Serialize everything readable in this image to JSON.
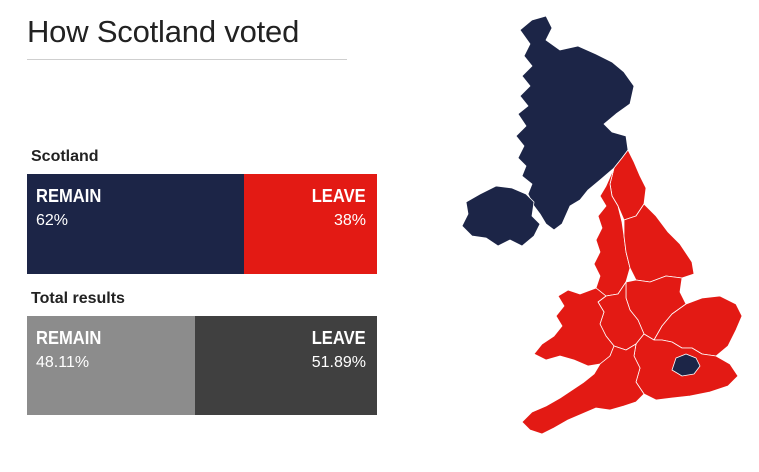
{
  "title": "How Scotland voted",
  "scotland": {
    "label": "Scotland",
    "remain": {
      "label": "REMAIN",
      "value": "62%",
      "share": 62
    },
    "leave": {
      "label": "LEAVE",
      "value": "38%",
      "share": 38
    }
  },
  "total": {
    "label": "Total results",
    "remain": {
      "label": "REMAIN",
      "value": "48.11%",
      "share": 48.11
    },
    "leave": {
      "label": "LEAVE",
      "value": "51.89%",
      "share": 51.89
    }
  },
  "colors": {
    "remain": "#1c2547",
    "leave": "#e31a14",
    "total_remain": "#8c8c8c",
    "total_leave": "#404040"
  },
  "map": {
    "regions": [
      {
        "name": "Scotland",
        "result": "remain"
      },
      {
        "name": "Northern Ireland",
        "result": "remain"
      },
      {
        "name": "London",
        "result": "remain"
      },
      {
        "name": "North East",
        "result": "leave"
      },
      {
        "name": "North West",
        "result": "leave"
      },
      {
        "name": "Yorkshire and the Humber",
        "result": "leave"
      },
      {
        "name": "East Midlands",
        "result": "leave"
      },
      {
        "name": "West Midlands",
        "result": "leave"
      },
      {
        "name": "East of England",
        "result": "leave"
      },
      {
        "name": "South East",
        "result": "leave"
      },
      {
        "name": "South West",
        "result": "leave"
      },
      {
        "name": "Wales",
        "result": "leave"
      }
    ]
  }
}
